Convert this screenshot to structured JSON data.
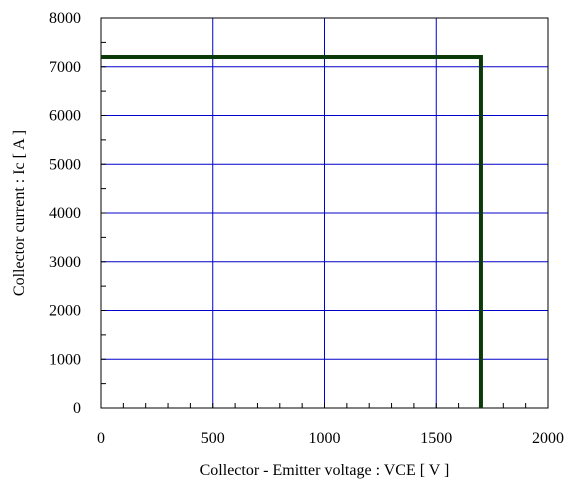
{
  "chart_data": {
    "type": "line",
    "title": "",
    "xlabel": "Collector - Emitter voltage  :  VCE  [ V ]",
    "ylabel": "Collector current  :  Ic  [ A ]",
    "xlim": [
      0,
      2000
    ],
    "ylim": [
      0,
      8000
    ],
    "x_ticks": [
      0,
      500,
      1000,
      1500,
      2000
    ],
    "y_ticks": [
      0,
      1000,
      2000,
      3000,
      4000,
      5000,
      6000,
      7000,
      8000
    ],
    "x_tick_labels": [
      "0",
      "500",
      "1000",
      "1500",
      "2000"
    ],
    "y_tick_labels": [
      "0",
      "1000",
      "2000",
      "3000",
      "4000",
      "5000",
      "6000",
      "7000",
      "8000"
    ],
    "grid": true,
    "grid_color": "#0000cc",
    "series": [
      {
        "color": "#0a3a0a",
        "x": [
          0,
          1700,
          1700
        ],
        "y": [
          7200,
          7200,
          0
        ]
      }
    ]
  }
}
